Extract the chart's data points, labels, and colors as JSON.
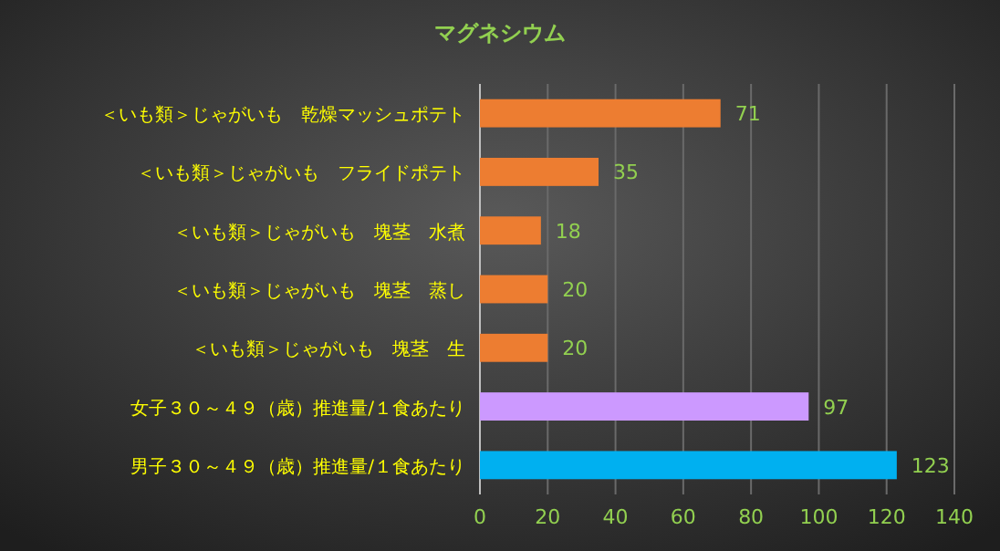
{
  "chart_data": {
    "type": "bar",
    "orientation": "horizontal",
    "title": "マグネシウム",
    "categories": [
      "＜いも類＞じゃがいも　乾燥マッシュポテト",
      "＜いも類＞じゃがいも　フライドポテト",
      "＜いも類＞じゃがいも　塊茎　水煮",
      "＜いも類＞じゃがいも　塊茎　蒸し",
      "＜いも類＞じゃがいも　塊茎　生",
      "女子３０～４９（歳）推進量/１食あたり",
      "男子３０～４９（歳）推進量/１食あたり"
    ],
    "values": [
      71,
      35,
      18,
      20,
      20,
      97,
      123
    ],
    "colors": [
      "#ed7d31",
      "#ed7d31",
      "#ed7d31",
      "#ed7d31",
      "#ed7d31",
      "#cc99ff",
      "#00b0f0"
    ],
    "xlim": [
      0,
      140
    ],
    "xticks": [
      0,
      20,
      40,
      60,
      80,
      100,
      120,
      140
    ],
    "grid": "x",
    "data_labels": true
  }
}
